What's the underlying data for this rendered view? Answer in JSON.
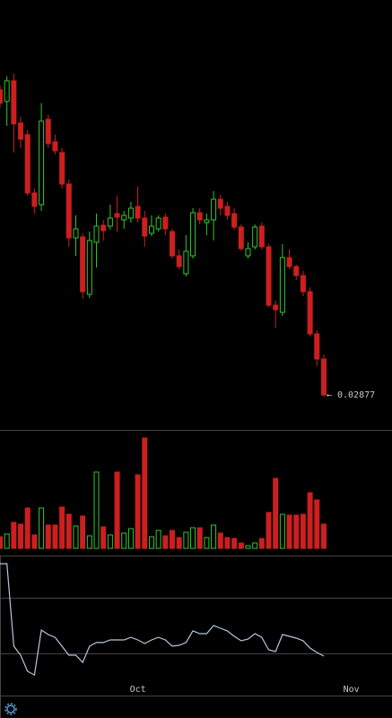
{
  "chart_data": [
    {
      "type": "candlestick",
      "x": [
        0,
        1,
        2,
        3,
        4,
        5,
        6,
        7,
        8,
        9,
        10,
        11,
        12,
        13,
        14,
        15,
        16,
        17,
        18,
        19,
        20,
        21,
        22,
        23,
        24,
        25,
        26,
        27,
        28,
        29,
        30,
        31,
        32,
        33,
        34,
        35,
        36,
        37,
        38,
        39,
        40,
        41,
        42,
        43,
        44,
        45,
        46,
        47
      ],
      "open": [
        0.04577,
        0.04512,
        0.04627,
        0.04392,
        0.04327,
        0.04002,
        0.03937,
        0.04412,
        0.04287,
        0.04227,
        0.04052,
        0.03752,
        0.03757,
        0.03437,
        0.03727,
        0.03822,
        0.03817,
        0.03887,
        0.03852,
        0.03862,
        0.03927,
        0.03862,
        0.03777,
        0.03802,
        0.03867,
        0.03787,
        0.03652,
        0.03552,
        0.03652,
        0.03892,
        0.03837,
        0.03852,
        0.03967,
        0.03927,
        0.03887,
        0.03812,
        0.03652,
        0.03702,
        0.03817,
        0.03702,
        0.03377,
        0.03337,
        0.03642,
        0.03592,
        0.03542,
        0.03452,
        0.03217,
        0.03077
      ],
      "high": [
        0.04602,
        0.04652,
        0.04667,
        0.04427,
        0.04352,
        0.04027,
        0.04502,
        0.04437,
        0.04327,
        0.04252,
        0.04077,
        0.03877,
        0.03777,
        0.03787,
        0.03887,
        0.03852,
        0.03937,
        0.03987,
        0.03902,
        0.03952,
        0.04037,
        0.03902,
        0.03877,
        0.03877,
        0.03887,
        0.03802,
        0.03687,
        0.03767,
        0.03917,
        0.03917,
        0.03887,
        0.04012,
        0.03992,
        0.03952,
        0.03917,
        0.03827,
        0.03727,
        0.03827,
        0.03837,
        0.03717,
        0.03402,
        0.03717,
        0.03687,
        0.03602,
        0.03567,
        0.03477,
        0.03237,
        0.03102
      ],
      "low": [
        0.04477,
        0.04377,
        0.04227,
        0.04252,
        0.03987,
        0.03887,
        0.03902,
        0.04252,
        0.04217,
        0.04027,
        0.03702,
        0.03652,
        0.03412,
        0.03417,
        0.03587,
        0.03737,
        0.03797,
        0.03787,
        0.03802,
        0.03837,
        0.03837,
        0.03702,
        0.03762,
        0.03787,
        0.03767,
        0.03637,
        0.03577,
        0.03537,
        0.03637,
        0.03827,
        0.03767,
        0.03737,
        0.03877,
        0.03852,
        0.03797,
        0.03682,
        0.03637,
        0.03687,
        0.03687,
        0.03367,
        0.03252,
        0.03317,
        0.03577,
        0.03517,
        0.03427,
        0.03202,
        0.03037,
        0.02867
      ],
      "close": [
        0.04502,
        0.04627,
        0.04387,
        0.04302,
        0.04002,
        0.03927,
        0.04402,
        0.04277,
        0.04237,
        0.04052,
        0.03752,
        0.03802,
        0.03452,
        0.03737,
        0.03817,
        0.03792,
        0.03862,
        0.03867,
        0.03877,
        0.03917,
        0.03862,
        0.03762,
        0.03817,
        0.03862,
        0.03802,
        0.03652,
        0.03592,
        0.03677,
        0.03892,
        0.03852,
        0.03852,
        0.03967,
        0.03917,
        0.03877,
        0.03812,
        0.03692,
        0.03692,
        0.03812,
        0.03702,
        0.03377,
        0.03352,
        0.03642,
        0.03592,
        0.03542,
        0.03452,
        0.03217,
        0.03077,
        0.02877
      ],
      "last_label": "← 0.02877",
      "up_color": "#2ec82e",
      "down_color": "#cc1f1f",
      "xlim": [
        0,
        56.9
      ],
      "xticks": [
        {
          "value": 20,
          "label": "Oct"
        },
        {
          "value": 51,
          "label": "Nov"
        }
      ],
      "ylim": [
        0.02687,
        0.05077
      ]
    },
    {
      "type": "bar",
      "values": [
        13,
        16,
        29,
        27,
        45,
        15,
        45,
        26,
        26,
        46,
        38,
        25,
        36,
        14,
        85,
        24,
        15,
        85,
        17,
        22,
        82,
        123,
        13,
        20,
        14,
        20,
        12,
        18,
        23,
        23,
        12,
        26,
        17,
        12,
        11,
        6,
        3,
        6,
        11,
        40,
        78,
        38,
        37,
        37,
        38,
        62,
        54,
        27
      ],
      "ylim": [
        0,
        130
      ]
    },
    {
      "type": "line",
      "values": [
        94.8,
        94.8,
        35.5,
        29.0,
        17.4,
        14.8,
        47.1,
        43.9,
        41.9,
        35.5,
        29.0,
        29.0,
        23.9,
        35.5,
        38.1,
        38.1,
        40.0,
        40.0,
        40.0,
        41.9,
        40.0,
        37.4,
        40.0,
        41.9,
        40.0,
        35.5,
        36.1,
        38.1,
        46.5,
        44.5,
        44.5,
        50.3,
        48.4,
        46.5,
        42.6,
        39.4,
        40.6,
        44.5,
        41.9,
        32.9,
        31.6,
        43.9,
        42.6,
        41.3,
        39.4,
        34.2,
        31.0,
        28.4
      ],
      "color": "#b4c8dc",
      "ylim": [
        0,
        100
      ],
      "levels": [
        30,
        70
      ]
    }
  ]
}
